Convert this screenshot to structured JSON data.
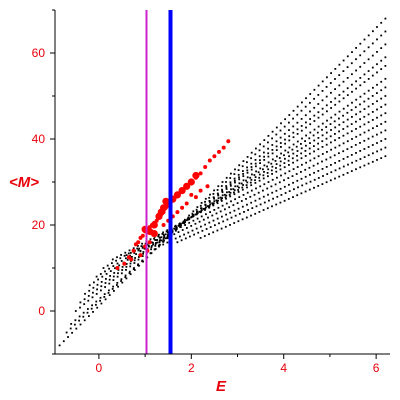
{
  "chart_data": {
    "type": "scatter",
    "title": "",
    "xlabel": "E",
    "ylabel": "<M>",
    "xlim": [
      -0.95,
      6.3
    ],
    "ylim": [
      -10,
      70
    ],
    "xticks": [
      0,
      2,
      4,
      6
    ],
    "yticks": [
      0,
      20,
      40,
      60
    ],
    "grid": false,
    "legend": "none",
    "vertical_lines": [
      {
        "x": 1.03,
        "color": "#cc22cc",
        "style": "thin"
      },
      {
        "x": 1.55,
        "color": "#0000ff",
        "style": "thick"
      }
    ],
    "series": [
      {
        "role": "background",
        "color": "#000000",
        "bands": [
          {
            "x0": -0.85,
            "y0": -8,
            "x1": 6.2,
            "y1": 68
          },
          {
            "x0": -0.7,
            "y0": -5,
            "x1": 6.2,
            "y1": 65
          },
          {
            "x0": -0.6,
            "y0": -3,
            "x1": 6.2,
            "y1": 62
          },
          {
            "x0": -0.5,
            "y0": 0,
            "x1": 6.2,
            "y1": 59
          },
          {
            "x0": -0.4,
            "y0": 2,
            "x1": 6.2,
            "y1": 57
          },
          {
            "x0": -0.3,
            "y0": 4,
            "x1": 6.2,
            "y1": 54
          },
          {
            "x0": -0.2,
            "y0": 6,
            "x1": 6.2,
            "y1": 52
          },
          {
            "x0": -0.05,
            "y0": 8,
            "x1": 6.2,
            "y1": 50
          },
          {
            "x0": 0.1,
            "y0": 10,
            "x1": 6.2,
            "y1": 48
          },
          {
            "x0": 0.3,
            "y0": 12,
            "x1": 6.2,
            "y1": 46
          },
          {
            "x0": 0.6,
            "y0": 13,
            "x1": 6.2,
            "y1": 44
          },
          {
            "x0": 0.9,
            "y0": 14,
            "x1": 6.2,
            "y1": 42
          },
          {
            "x0": 1.3,
            "y0": 15,
            "x1": 6.2,
            "y1": 40
          },
          {
            "x0": 1.7,
            "y0": 16,
            "x1": 6.2,
            "y1": 38
          },
          {
            "x0": 2.2,
            "y0": 17,
            "x1": 6.2,
            "y1": 36
          }
        ]
      },
      {
        "role": "highlight",
        "color": "#ff0000",
        "points": [
          [
            0.4,
            10
          ],
          [
            0.55,
            11
          ],
          [
            0.65,
            12.5
          ],
          [
            0.75,
            14
          ],
          [
            0.8,
            15.5
          ],
          [
            0.85,
            16
          ],
          [
            0.9,
            17
          ],
          [
            0.95,
            17.5
          ],
          [
            1.0,
            18.5
          ],
          [
            1.05,
            19
          ],
          [
            1.1,
            19.5
          ],
          [
            1.15,
            20
          ],
          [
            1.2,
            20.5
          ],
          [
            1.25,
            21
          ],
          [
            1.3,
            22
          ],
          [
            1.35,
            22.5
          ],
          [
            1.4,
            23
          ],
          [
            1.45,
            24
          ],
          [
            1.5,
            24.5
          ],
          [
            1.55,
            25
          ],
          [
            1.6,
            26
          ],
          [
            1.65,
            26.5
          ],
          [
            1.7,
            27
          ],
          [
            1.8,
            28
          ],
          [
            1.9,
            29
          ],
          [
            2.0,
            30
          ],
          [
            2.1,
            31
          ],
          [
            2.2,
            32
          ],
          [
            2.3,
            33.5
          ],
          [
            2.4,
            35
          ],
          [
            2.5,
            36
          ],
          [
            2.6,
            37
          ],
          [
            2.7,
            38
          ],
          [
            2.8,
            39.5
          ],
          [
            1.0,
            15
          ],
          [
            1.05,
            14
          ],
          [
            1.1,
            16
          ],
          [
            0.9,
            13
          ],
          [
            0.7,
            12
          ],
          [
            1.6,
            22
          ],
          [
            1.7,
            23
          ],
          [
            1.8,
            24
          ],
          [
            1.9,
            25
          ],
          [
            2.0,
            27
          ],
          [
            2.2,
            28
          ],
          [
            1.4,
            20
          ],
          [
            1.5,
            21
          ],
          [
            2.35,
            29
          ],
          [
            2.1,
            26.5
          ]
        ],
        "large_points": [
          [
            1.0,
            19
          ],
          [
            1.1,
            18.5
          ],
          [
            1.2,
            20
          ],
          [
            1.3,
            22
          ],
          [
            1.4,
            24
          ],
          [
            1.5,
            25
          ],
          [
            1.6,
            26
          ],
          [
            1.7,
            27
          ],
          [
            1.8,
            28
          ],
          [
            1.9,
            29
          ],
          [
            2.0,
            30
          ],
          [
            2.1,
            31.5
          ],
          [
            1.2,
            18
          ],
          [
            1.35,
            23
          ],
          [
            1.45,
            25.5
          ]
        ]
      }
    ]
  }
}
